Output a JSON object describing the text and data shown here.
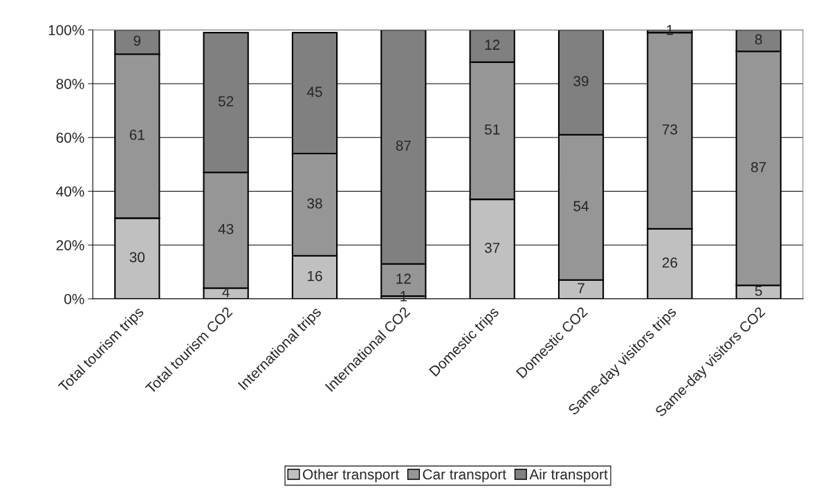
{
  "chart_data": {
    "type": "bar",
    "stacked": true,
    "categories": [
      "Total tourism trips",
      "Total tourism CO2",
      "International trips",
      "International CO2",
      "Domestic trips",
      "Domestic CO2",
      "Same-day visitors trips",
      "Same-day visitors CO2"
    ],
    "series": [
      {
        "name": "Other transport",
        "color": "#c0c0c0",
        "values": [
          30,
          4,
          16,
          1,
          37,
          7,
          26,
          5
        ]
      },
      {
        "name": "Car transport",
        "color": "#969696",
        "values": [
          61,
          43,
          38,
          12,
          51,
          54,
          73,
          87
        ]
      },
      {
        "name": "Air transport",
        "color": "#808080",
        "values": [
          9,
          52,
          45,
          87,
          12,
          39,
          1,
          8
        ]
      }
    ],
    "ylim": [
      0,
      100
    ],
    "yticks": [
      {
        "value": 0,
        "label": "0%"
      },
      {
        "value": 20,
        "label": "20%"
      },
      {
        "value": 40,
        "label": "40%"
      },
      {
        "value": 60,
        "label": "60%"
      },
      {
        "value": 80,
        "label": "80%"
      },
      {
        "value": 100,
        "label": "100%"
      }
    ],
    "grid": "y",
    "legend": "bottom",
    "data_labels": true
  }
}
